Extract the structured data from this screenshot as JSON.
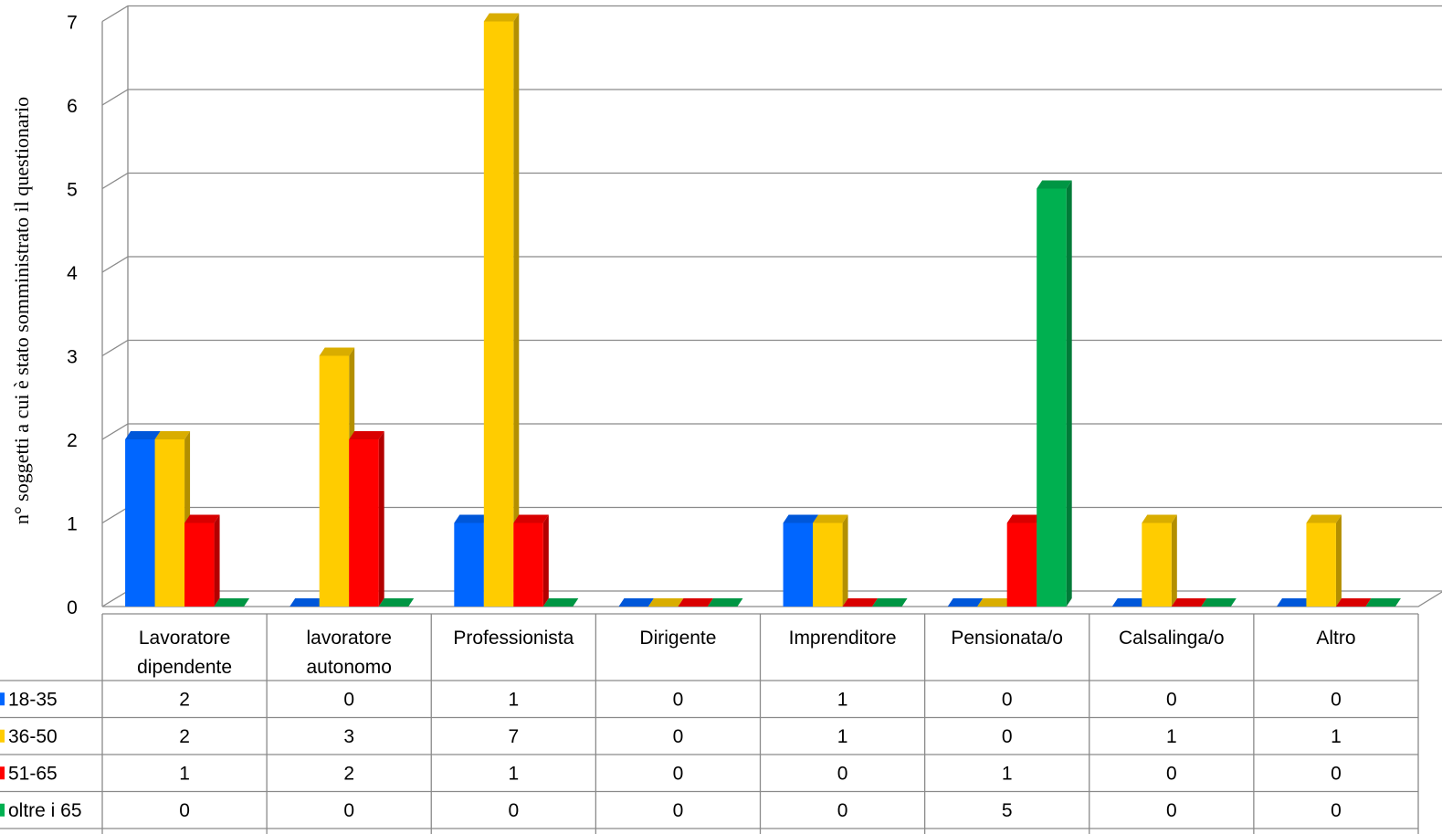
{
  "chart_data": {
    "type": "bar",
    "title": "",
    "ylabel": "n° soggetti a cui è stato somministrato il questionario",
    "xlabel": "",
    "ylim": [
      0,
      7
    ],
    "yticks": [
      "0",
      "1",
      "2",
      "3",
      "4",
      "5",
      "6",
      "7"
    ],
    "grid": true,
    "legend": "table-left",
    "categories": [
      [
        "Lavoratore",
        "dipendente"
      ],
      [
        "lavoratore",
        "autonomo"
      ],
      [
        "Professionista"
      ],
      [
        "Dirigente"
      ],
      [
        "Imprenditore"
      ],
      [
        "Pensionata/o"
      ],
      [
        "Calsalinga/o"
      ],
      [
        "Altro"
      ]
    ],
    "series": [
      {
        "name": "18-35",
        "color": "#0066FF",
        "values": [
          2,
          0,
          1,
          0,
          1,
          0,
          0,
          0
        ]
      },
      {
        "name": "36-50",
        "color": "#FFCC00",
        "values": [
          2,
          3,
          7,
          0,
          1,
          0,
          1,
          1
        ]
      },
      {
        "name": "51-65",
        "color": "#FF0000",
        "values": [
          1,
          2,
          1,
          0,
          0,
          1,
          0,
          0
        ]
      },
      {
        "name": "oltre i 65",
        "color": "#00B050",
        "values": [
          0,
          0,
          0,
          0,
          0,
          5,
          0,
          0
        ]
      }
    ]
  }
}
